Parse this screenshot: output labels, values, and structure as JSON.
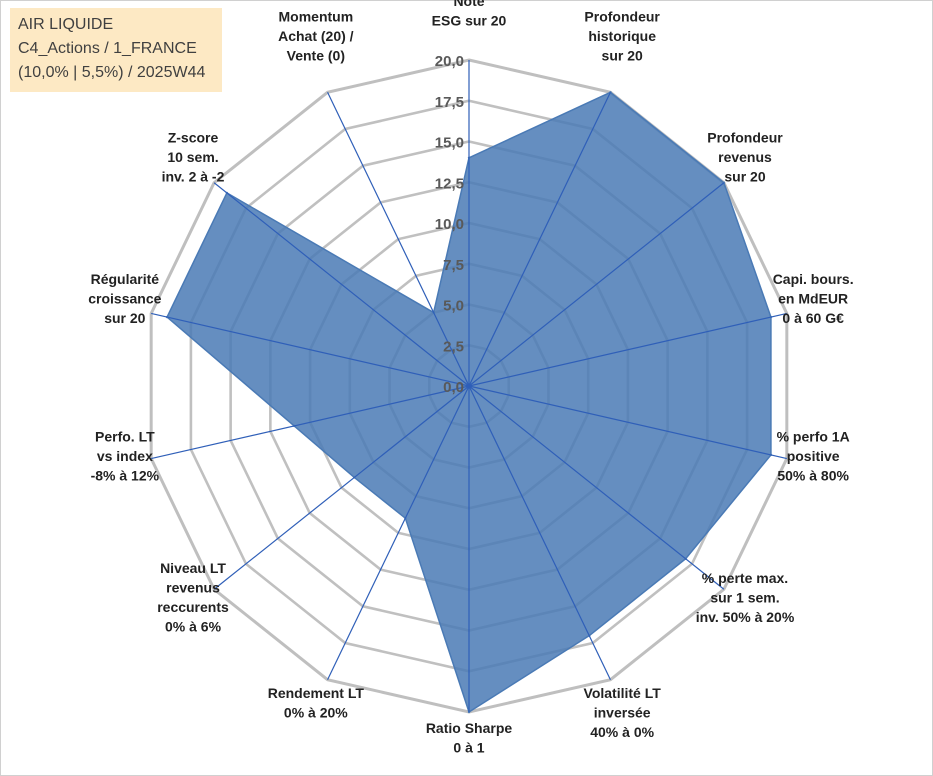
{
  "info": {
    "line1": "AIR LIQUIDE",
    "line2": "C4_Actions / 1_FRANCE",
    "line3": "(10,0% | 5,5%) / 2025W44"
  },
  "colors": {
    "fill": "#4a7ab5",
    "spoke": "#2f5fb8",
    "grid": "#c0c0c0",
    "gridOuter": "#bfbfbf",
    "infobox_bg": "#fde9c4"
  },
  "chart_data": {
    "type": "radar",
    "title": "",
    "rmin": 0,
    "rmax": 20,
    "ticks": [
      "0,0",
      "2,5",
      "5,0",
      "7,5",
      "10,0",
      "12,5",
      "15,0",
      "17,5",
      "20,0"
    ],
    "tick_values": [
      0,
      2.5,
      5,
      7.5,
      10,
      12.5,
      15,
      17.5,
      20
    ],
    "axes": [
      {
        "lines": [
          "Note",
          "ESG sur 20"
        ],
        "value": 14
      },
      {
        "lines": [
          "Profondeur",
          "historique",
          "sur 20"
        ],
        "value": 20
      },
      {
        "lines": [
          "Profondeur",
          "revenus",
          "sur 20"
        ],
        "value": 20
      },
      {
        "lines": [
          "Capi. bours.",
          "en MdEUR",
          "0 à 60 G€"
        ],
        "value": 19
      },
      {
        "lines": [
          "% perfo 1A",
          "positive",
          "50% à 80%"
        ],
        "value": 19
      },
      {
        "lines": [
          "% perte max.",
          "sur 1 sem.",
          "inv. 50% à 20%"
        ],
        "value": 17
      },
      {
        "lines": [
          "Volatilité LT",
          "inversée",
          "40% à 0%"
        ],
        "value": 17
      },
      {
        "lines": [
          "Ratio Sharpe",
          "0 à 1"
        ],
        "value": 20
      },
      {
        "lines": [
          "Rendement LT",
          "0% à 20%"
        ],
        "value": 9
      },
      {
        "lines": [
          "Niveau LT",
          "revenus",
          "reccurents",
          "0% à 6%"
        ],
        "value": 9
      },
      {
        "lines": [
          "Perfo. LT",
          "vs index",
          "-8% à 12%"
        ],
        "value": 11
      },
      {
        "lines": [
          "Régularité",
          "croissance",
          "sur 20"
        ],
        "value": 19
      },
      {
        "lines": [
          "Z-score",
          "10 sem.",
          "inv. 2 à -2"
        ],
        "value": 19
      },
      {
        "lines": [
          "Momentum",
          "Achat (20) /",
          "Vente (0)"
        ],
        "value": 5
      }
    ]
  }
}
